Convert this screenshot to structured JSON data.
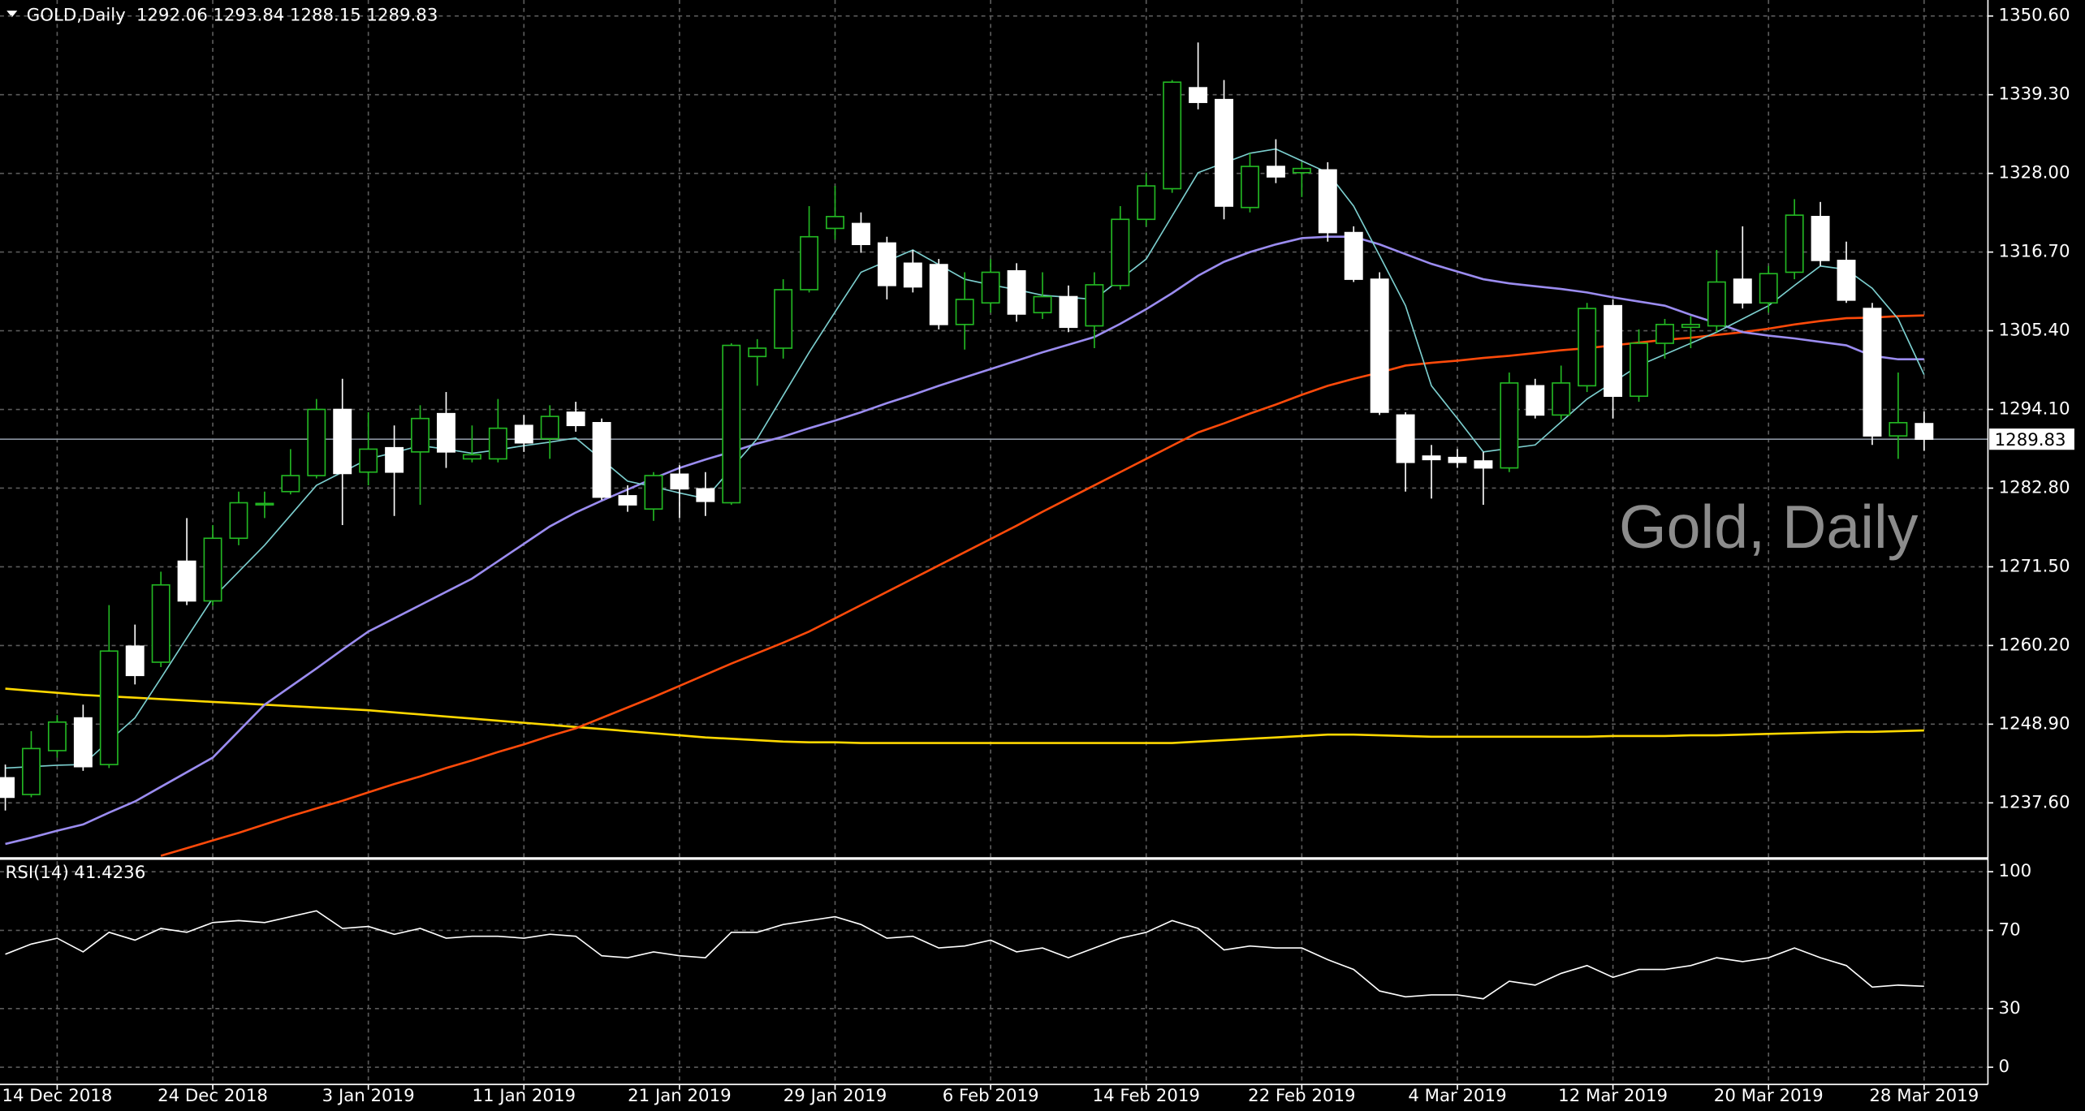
{
  "chart_data": [
    {
      "type": "candlestick",
      "title": "GOLD,Daily",
      "watermark": "Gold, Daily",
      "categories": [
        null,
        null,
        "14 Dec 2018",
        null,
        null,
        null,
        null,
        null,
        "24 Dec 2018",
        null,
        null,
        null,
        null,
        null,
        "3 Jan 2019",
        null,
        null,
        null,
        null,
        null,
        "11 Jan 2019",
        null,
        null,
        null,
        null,
        null,
        "21 Jan 2019",
        null,
        null,
        null,
        null,
        null,
        "29 Jan 2019",
        null,
        null,
        null,
        null,
        null,
        "6 Feb 2019",
        null,
        null,
        null,
        null,
        null,
        "14 Feb 2019",
        null,
        null,
        null,
        null,
        null,
        "22 Feb 2019",
        null,
        null,
        null,
        null,
        null,
        "4 Mar 2019",
        null,
        null,
        null,
        null,
        null,
        "12 Mar 2019",
        null,
        null,
        null,
        null,
        null,
        "20 Mar 2019",
        null,
        null,
        null,
        null,
        null,
        "28 Mar 2019"
      ],
      "open": [
        1241.2,
        1238.8,
        1245.1,
        1249.8,
        1243.1,
        1260.1,
        1257.8,
        1272.3,
        1266.6,
        1275.6,
        1280.4,
        1282.3,
        1284.6,
        1294.1,
        1285.1,
        1288.6,
        1288.0,
        1293.5,
        1287.0,
        1287.0,
        1291.8,
        1289.9,
        1293.7,
        1292.2,
        1281.7,
        1279.8,
        1284.8,
        1282.7,
        1280.7,
        1301.7,
        1302.9,
        1311.3,
        1320.1,
        1320.8,
        1318.0,
        1315.1,
        1314.9,
        1306.3,
        1309.4,
        1314.0,
        1308.0,
        1310.3,
        1306.1,
        1311.9,
        1321.4,
        1325.8,
        1340.3,
        1338.6,
        1323.1,
        1329.0,
        1328.1,
        1328.5,
        1319.5,
        1312.8,
        1293.3,
        1287.4,
        1287.2,
        1286.7,
        1285.7,
        1297.5,
        1293.3,
        1297.5,
        1309.0,
        1296.0,
        1303.6,
        1305.9,
        1306.1,
        1312.8,
        1309.4,
        1313.8,
        1321.8,
        1315.5,
        1308.6,
        1290.3,
        1292.06
      ],
      "high": [
        1243.1,
        1247.9,
        1250.2,
        1251.7,
        1266.0,
        1263.2,
        1270.8,
        1278.5,
        1277.5,
        1282.3,
        1282.3,
        1288.4,
        1295.6,
        1298.5,
        1293.7,
        1291.8,
        1294.7,
        1296.6,
        1291.8,
        1295.6,
        1293.3,
        1294.7,
        1295.2,
        1292.8,
        1283.2,
        1285.1,
        1286.1,
        1285.1,
        1303.6,
        1304.2,
        1312.8,
        1323.3,
        1326.2,
        1322.4,
        1318.9,
        1317.0,
        1315.7,
        1313.8,
        1315.7,
        1315.1,
        1313.8,
        1311.9,
        1313.8,
        1323.3,
        1328.1,
        1341.4,
        1346.8,
        1341.4,
        1330.9,
        1332.9,
        1329.6,
        1329.6,
        1320.4,
        1313.8,
        1293.7,
        1289.0,
        1288.4,
        1288.0,
        1299.4,
        1298.5,
        1300.4,
        1309.4,
        1309.9,
        1305.6,
        1307.1,
        1307.5,
        1317.0,
        1320.4,
        1314.7,
        1324.3,
        1323.9,
        1318.2,
        1309.4,
        1299.4,
        1293.84
      ],
      "low": [
        1236.5,
        1238.4,
        1244.1,
        1242.2,
        1242.6,
        1254.6,
        1257.1,
        1266.0,
        1265.9,
        1274.6,
        1278.5,
        1281.9,
        1284.2,
        1277.5,
        1283.2,
        1278.8,
        1280.4,
        1285.7,
        1286.5,
        1286.5,
        1288.0,
        1287.0,
        1290.9,
        1281.1,
        1279.4,
        1278.1,
        1278.5,
        1278.8,
        1280.4,
        1297.5,
        1301.4,
        1310.9,
        1318.5,
        1316.6,
        1309.9,
        1310.9,
        1305.6,
        1302.7,
        1308.0,
        1306.7,
        1307.1,
        1305.2,
        1302.9,
        1311.3,
        1320.4,
        1325.2,
        1337.2,
        1321.4,
        1322.4,
        1326.6,
        1324.6,
        1318.2,
        1312.4,
        1293.3,
        1282.3,
        1281.3,
        1285.7,
        1280.4,
        1285.1,
        1292.8,
        1292.6,
        1296.6,
        1292.8,
        1295.2,
        1301.4,
        1302.9,
        1305.2,
        1308.6,
        1308.0,
        1312.8,
        1314.7,
        1309.4,
        1289.0,
        1287.0,
        1288.15
      ],
      "close": [
        1238.4,
        1245.4,
        1249.2,
        1242.8,
        1259.4,
        1255.9,
        1268.9,
        1266.6,
        1275.6,
        1280.7,
        1280.6,
        1284.6,
        1294.1,
        1284.9,
        1288.4,
        1285.1,
        1292.8,
        1288.0,
        1287.6,
        1291.4,
        1289.3,
        1293.1,
        1291.8,
        1281.5,
        1280.4,
        1284.6,
        1282.7,
        1280.9,
        1303.3,
        1302.9,
        1311.3,
        1318.9,
        1321.8,
        1317.8,
        1311.9,
        1311.7,
        1306.3,
        1309.9,
        1313.8,
        1307.8,
        1310.3,
        1305.9,
        1312.0,
        1321.4,
        1326.2,
        1341.1,
        1338.2,
        1323.3,
        1329.0,
        1327.5,
        1328.7,
        1319.5,
        1312.8,
        1293.7,
        1286.5,
        1286.9,
        1286.5,
        1285.7,
        1297.9,
        1293.3,
        1297.9,
        1308.6,
        1296.0,
        1303.6,
        1306.3,
        1306.3,
        1312.4,
        1309.4,
        1313.6,
        1322.0,
        1315.5,
        1309.8,
        1290.3,
        1292.2,
        1289.83
      ],
      "up_fill": "#000000",
      "up_line": "#23b823",
      "down_fill": "#ffffff",
      "down_line": "#ffffff",
      "series": [
        {
          "color": "#ffd800",
          "values": [
            1254.0,
            1253.7,
            1253.4,
            1253.1,
            1252.9,
            1252.7,
            1252.5,
            1252.3,
            1252.1,
            1251.9,
            1251.7,
            1251.5,
            1251.3,
            1251.1,
            1250.9,
            1250.6,
            1250.3,
            1250.0,
            1249.7,
            1249.4,
            1249.1,
            1248.8,
            1248.5,
            1248.2,
            1247.9,
            1247.6,
            1247.3,
            1247.0,
            1246.8,
            1246.6,
            1246.4,
            1246.3,
            1246.3,
            1246.2,
            1246.2,
            1246.2,
            1246.2,
            1246.2,
            1246.2,
            1246.2,
            1246.2,
            1246.2,
            1246.2,
            1246.2,
            1246.2,
            1246.2,
            1246.4,
            1246.6,
            1246.8,
            1247.0,
            1247.2,
            1247.4,
            1247.4,
            1247.3,
            1247.2,
            1247.1,
            1247.1,
            1247.1,
            1247.1,
            1247.1,
            1247.1,
            1247.1,
            1247.2,
            1247.2,
            1247.2,
            1247.3,
            1247.3,
            1247.4,
            1247.5,
            1247.6,
            1247.7,
            1247.8,
            1247.8,
            1247.9,
            1248.0
          ]
        },
        {
          "color": "#ff4a0a",
          "values": [
            null,
            null,
            null,
            null,
            null,
            null,
            1230.0,
            1231.1,
            1232.2,
            1233.3,
            1234.5,
            1235.7,
            1236.8,
            1237.9,
            1239.1,
            1240.3,
            1241.4,
            1242.6,
            1243.7,
            1244.9,
            1246.0,
            1247.2,
            1248.3,
            1249.8,
            1251.3,
            1252.8,
            1254.4,
            1256.0,
            1257.6,
            1259.1,
            1260.6,
            1262.2,
            1264.1,
            1266.0,
            1267.9,
            1269.8,
            1271.7,
            1273.6,
            1275.5,
            1277.4,
            1279.4,
            1281.3,
            1283.2,
            1285.1,
            1287.0,
            1288.9,
            1290.8,
            1292.1,
            1293.5,
            1294.8,
            1296.2,
            1297.5,
            1298.5,
            1299.4,
            1300.4,
            1300.8,
            1301.1,
            1301.5,
            1301.8,
            1302.2,
            1302.6,
            1302.9,
            1303.3,
            1303.7,
            1304.1,
            1304.4,
            1304.8,
            1305.2,
            1305.7,
            1306.3,
            1306.8,
            1307.2,
            1307.3,
            1307.5,
            1307.6
          ]
        },
        {
          "color": "#9b8cf0",
          "values": [
            1231.7,
            1232.6,
            1233.6,
            1234.5,
            1236.2,
            1237.8,
            1239.9,
            1242.0,
            1244.1,
            1247.9,
            1251.7,
            1254.3,
            1256.9,
            1259.6,
            1262.2,
            1264.1,
            1266.0,
            1267.9,
            1269.8,
            1272.3,
            1274.8,
            1277.3,
            1279.3,
            1281.0,
            1282.6,
            1284.2,
            1285.7,
            1286.9,
            1288.0,
            1289.2,
            1290.2,
            1291.4,
            1292.5,
            1293.7,
            1295.0,
            1296.2,
            1297.5,
            1298.7,
            1299.9,
            1301.1,
            1302.3,
            1303.4,
            1304.5,
            1306.4,
            1308.5,
            1310.8,
            1313.3,
            1315.3,
            1316.7,
            1317.8,
            1318.7,
            1318.9,
            1318.9,
            1317.8,
            1316.4,
            1315.0,
            1313.9,
            1312.8,
            1312.2,
            1311.8,
            1311.4,
            1310.9,
            1310.2,
            1309.6,
            1309.0,
            1307.7,
            1306.5,
            1305.2,
            1304.7,
            1304.3,
            1303.8,
            1303.3,
            1301.8,
            1301.3,
            1301.3
          ]
        },
        {
          "color": "#7ccfcf",
          "values": [
            1242.6,
            1242.8,
            1243.0,
            1243.1,
            1246.5,
            1249.8,
            1255.5,
            1261.3,
            1267.0,
            1270.8,
            1274.6,
            1278.9,
            1283.2,
            1285.1,
            1287.0,
            1287.9,
            1288.9,
            1288.4,
            1287.8,
            1288.3,
            1288.9,
            1289.4,
            1290.0,
            1286.9,
            1283.8,
            1283.0,
            1282.1,
            1281.3,
            1285.6,
            1289.9,
            1296.1,
            1302.3,
            1308.1,
            1313.8,
            1315.4,
            1317.0,
            1314.9,
            1312.8,
            1312.0,
            1311.3,
            1310.5,
            1310.2,
            1309.9,
            1312.8,
            1315.7,
            1321.9,
            1328.1,
            1329.5,
            1330.9,
            1331.5,
            1329.8,
            1328.1,
            1323.3,
            1316.2,
            1309.0,
            1297.5,
            1292.8,
            1288.0,
            1288.5,
            1289.0,
            1292.3,
            1295.6,
            1298.0,
            1300.4,
            1302.0,
            1303.6,
            1305.2,
            1307.1,
            1309.0,
            1311.9,
            1314.7,
            1314.2,
            1311.5,
            1307.1,
            1299.1
          ]
        }
      ],
      "ylim": [
        1229.8,
        1352.9
      ],
      "yticks": [
        {
          "value": 1350.6,
          "label": "1350.60"
        },
        {
          "value": 1339.3,
          "label": "1339.30"
        },
        {
          "value": 1328.0,
          "label": "1328.00"
        },
        {
          "value": 1316.7,
          "label": "1316.70"
        },
        {
          "value": 1305.4,
          "label": "1305.40"
        },
        {
          "value": 1294.1,
          "label": "1294.10"
        },
        {
          "value": 1282.8,
          "label": "1282.80"
        },
        {
          "value": 1271.5,
          "label": "1271.50"
        },
        {
          "value": 1260.2,
          "label": "1260.20"
        },
        {
          "value": 1248.9,
          "label": "1248.90"
        },
        {
          "value": 1237.6,
          "label": "1237.60"
        }
      ],
      "grid": true
    },
    {
      "type": "line",
      "title": "RSI(14)",
      "color": "#ffffff",
      "values": [
        57.8,
        63,
        66,
        59,
        69,
        65,
        71,
        69,
        74,
        75,
        74,
        77,
        80,
        71,
        72,
        68,
        71,
        66,
        67,
        67,
        66,
        68,
        67,
        57,
        56,
        59,
        57,
        56,
        69,
        69,
        73,
        75,
        77,
        73,
        66,
        67,
        61,
        62,
        65,
        59,
        61,
        56,
        61,
        66,
        69,
        75,
        71,
        60,
        62,
        61,
        61,
        55,
        50,
        39,
        36,
        37,
        37,
        35,
        44,
        42,
        48,
        52,
        46,
        50,
        50,
        52,
        56,
        54,
        56,
        61,
        56,
        52,
        41,
        42,
        41.4236
      ],
      "ylim": [
        -8.8,
        105.4
      ],
      "yticks": [
        100,
        70,
        30,
        0
      ],
      "grid": true
    }
  ]
}
